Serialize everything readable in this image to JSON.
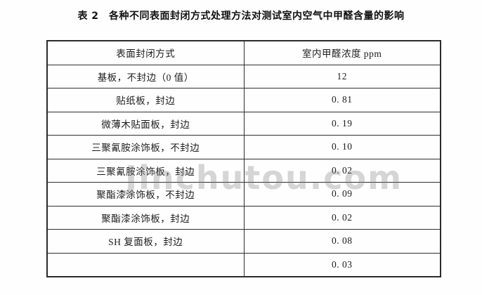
{
  "title": "表 2　各种不同表面封闭方式处理方法对测试室内空气中甲醛含量的影响",
  "watermark": "Jinchutou.com",
  "table": {
    "headers": [
      "表面封闭方式",
      "室内甲醛浓度 ppm"
    ],
    "rows": [
      {
        "method": "基板，不封边（0 值）",
        "value": "12"
      },
      {
        "method": "贴纸板，封边",
        "value": "0. 81"
      },
      {
        "method": "微薄木贴面板，封边",
        "value": "0. 19"
      },
      {
        "method": "三聚氰胺涂饰板，不封边",
        "value": "0. 10"
      },
      {
        "method": "三聚氰胺涂饰板，封边",
        "value": "0. 02"
      },
      {
        "method": "聚酯漆涂饰板，不封边",
        "value": "0. 09"
      },
      {
        "method": "聚酯漆涂饰板，封边",
        "value": "0. 02"
      },
      {
        "method": "SH 复面板，封边",
        "value": "0. 08"
      },
      {
        "method": "",
        "value": "0. 03"
      }
    ]
  },
  "colors": {
    "background": "#fefefe",
    "text": "#1c1c1c",
    "border": "#2b2b2b",
    "watermark_gray": "#c9c9c9"
  }
}
